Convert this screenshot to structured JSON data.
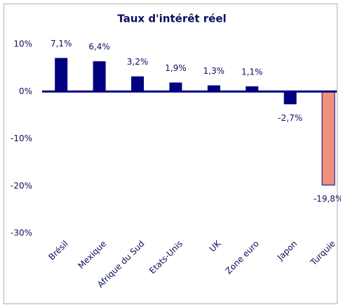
{
  "chart_data": {
    "type": "bar",
    "title": "Taux d'intérêt réel",
    "categories": [
      "Brésil",
      "Mexique",
      "Afrique du Sud",
      "Etats-Unis",
      "UK",
      "Zone euro",
      "Japon",
      "Turquie"
    ],
    "values": [
      7.1,
      6.4,
      3.2,
      1.9,
      1.3,
      1.1,
      -2.7,
      -19.8
    ],
    "value_labels": [
      "7,1%",
      "6,4%",
      "3,2%",
      "1,9%",
      "1,3%",
      "1,1%",
      "-2,7%",
      "-19,8%"
    ],
    "colors": [
      "#000080",
      "#000080",
      "#000080",
      "#000080",
      "#000080",
      "#000080",
      "#000080",
      "#f0907e"
    ],
    "ylim": [
      -30,
      10
    ],
    "yticks": [
      {
        "value": -30,
        "label": "-30%"
      },
      {
        "value": -20,
        "label": "-20%"
      },
      {
        "value": -10,
        "label": "-10%"
      },
      {
        "value": 0,
        "label": "0%"
      },
      {
        "value": 10,
        "label": "10%"
      }
    ],
    "grid": false
  }
}
